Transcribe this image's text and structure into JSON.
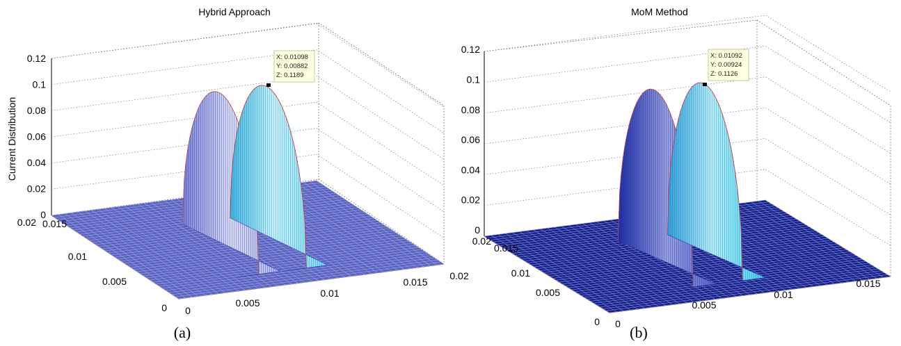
{
  "chart_data": [
    {
      "type": "surface",
      "panel_label": "(a)",
      "title": "Hybrid Approach",
      "zlabel": "Current Distribution",
      "xlabel": "",
      "ylabel": "",
      "x_ticks": [
        "0",
        "0.005",
        "0.01",
        "0.015",
        "0.02"
      ],
      "y_ticks": [
        "0",
        "0.005",
        "0.01",
        "0.015",
        "0.02"
      ],
      "z_ticks": [
        "0",
        "0.02",
        "0.04",
        "0.06",
        "0.08",
        "0.1",
        "0.12"
      ],
      "xlim": [
        0,
        0.02
      ],
      "ylim": [
        0,
        0.02
      ],
      "zlim": [
        0,
        0.12
      ],
      "grid": true,
      "colormap": "jet",
      "surface": {
        "plate_size": 0.02,
        "lobes": [
          {
            "x_center": 0.0074,
            "y_center": 0.00882,
            "x_halfwidth": 0.0018,
            "y_halfwidth": 0.006,
            "peak": 0.1189
          },
          {
            "x_center": 0.01098,
            "y_center": 0.00882,
            "x_halfwidth": 0.0018,
            "y_halfwidth": 0.006,
            "peak": 0.1189
          }
        ]
      },
      "datatip": {
        "x_text": "X: 0.01098",
        "y_text": "Y: 0.00882",
        "z_text": "Z: 0.1189",
        "x": 0.01098,
        "y": 0.00882,
        "z": 0.1189
      }
    },
    {
      "type": "surface",
      "panel_label": "(b)",
      "title": "MoM Method",
      "zlabel": "",
      "xlabel": "",
      "ylabel": "",
      "x_ticks": [
        "0",
        "0.005",
        "0.01",
        "0.015"
      ],
      "y_ticks": [
        "0",
        "0.005",
        "0.01",
        "0.015",
        "0.02"
      ],
      "z_ticks": [
        "0",
        "0.02",
        "0.04",
        "0.06",
        "0.08",
        "0.1",
        "0.12"
      ],
      "xlim": [
        0,
        0.02
      ],
      "ylim": [
        0,
        0.02
      ],
      "zlim": [
        0,
        0.12
      ],
      "grid": true,
      "colormap": "jet",
      "surface": {
        "plate_size": 0.02,
        "lobes": [
          {
            "x_center": 0.0074,
            "y_center": 0.00924,
            "x_halfwidth": 0.0018,
            "y_halfwidth": 0.006,
            "peak": 0.1126
          },
          {
            "x_center": 0.01092,
            "y_center": 0.00924,
            "x_halfwidth": 0.0018,
            "y_halfwidth": 0.006,
            "peak": 0.1126
          }
        ]
      },
      "datatip": {
        "x_text": "X: 0.01092",
        "y_text": "Y: 0.00924",
        "z_text": "Z: 0.1126",
        "x": 0.01092,
        "y": 0.00924,
        "z": 0.1126
      }
    }
  ],
  "colors": {
    "plate_a": "#5b63c2",
    "plate_b": "#15208e",
    "lobe_left_a": "#4a55c0",
    "lobe_left_b": "#1a2aa0",
    "lobe_right": "#5fe0f0",
    "datatip_bg": "#ffffe1",
    "datatip_border": "#c8c8a0"
  }
}
